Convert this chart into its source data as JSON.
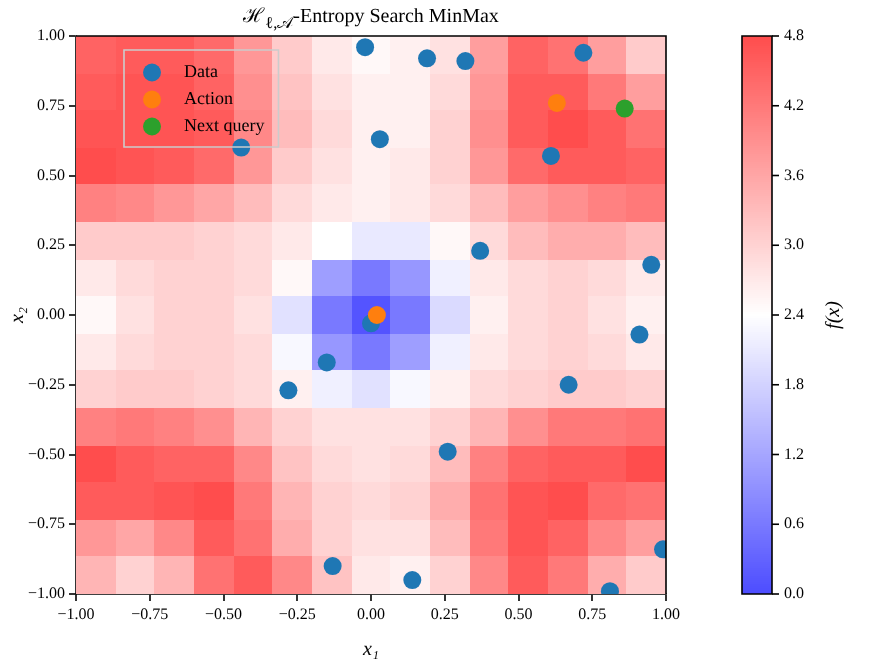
{
  "chart_data": {
    "type": "heatmap",
    "title": "ℋ$_{ℓ,𝒜}$-Entropy Search MinMax",
    "xlabel": "x₁",
    "ylabel": "x₂",
    "clabel": "f(x)",
    "xlim": [
      -1,
      1
    ],
    "xticks": [
      {
        "value": -1,
        "label": "−1.00"
      },
      {
        "value": -0.75,
        "label": "−0.75"
      },
      {
        "value": -0.5,
        "label": "−0.50"
      },
      {
        "value": -0.25,
        "label": "−0.25"
      },
      {
        "value": 0,
        "label": "0.00"
      },
      0.25,
      {
        "value": 0.5,
        "label": "0.50"
      },
      0.75,
      {
        "value": 1,
        "label": "1.00"
      }
    ],
    "ylim": [
      -1,
      1
    ],
    "yticks": [
      {
        "value": -1,
        "label": "−1.00"
      },
      {
        "value": -0.75,
        "label": "−0.75"
      },
      {
        "value": -0.5,
        "label": "−0.50"
      },
      {
        "value": -0.25,
        "label": "−0.25"
      },
      {
        "value": 0,
        "label": "0.00"
      },
      0.25,
      {
        "value": 0.5,
        "label": "0.50"
      },
      0.75,
      {
        "value": 1,
        "label": "1.00"
      }
    ],
    "clim": [
      0,
      4.8
    ],
    "cticks": [
      {
        "value": 0,
        "label": "0.0"
      },
      0.6,
      1.2,
      1.8,
      2.4,
      {
        "value": 3,
        "label": "3.0"
      },
      3.6,
      4.2,
      4.8
    ],
    "cells": [
      [
        4.5,
        4.6,
        4.6,
        4.4,
        3.8,
        3.1,
        2.7,
        2.5,
        2.6,
        2.8,
        3.7,
        4.5,
        4.3,
        3.7,
        3.1
      ],
      [
        4.6,
        4.7,
        4.7,
        4.5,
        3.9,
        3.2,
        2.8,
        2.6,
        2.6,
        2.9,
        3.8,
        4.6,
        4.6,
        4.2,
        3.7
      ],
      [
        4.7,
        4.7,
        4.7,
        4.6,
        4.0,
        3.3,
        2.9,
        2.6,
        2.6,
        3.0,
        3.9,
        4.6,
        4.8,
        4.6,
        4.3
      ],
      [
        4.8,
        4.7,
        4.6,
        4.4,
        3.8,
        3.1,
        2.8,
        2.6,
        2.7,
        3.0,
        3.8,
        4.4,
        4.6,
        4.6,
        4.5
      ],
      [
        4.1,
        4.0,
        3.8,
        3.6,
        3.3,
        2.9,
        2.7,
        2.6,
        2.7,
        2.9,
        3.3,
        3.7,
        3.9,
        4.1,
        4.2
      ],
      [
        3.1,
        3.1,
        3.1,
        3.0,
        2.9,
        2.7,
        2.4,
        2.1,
        2.1,
        2.5,
        2.9,
        3.3,
        3.5,
        3.5,
        3.3
      ],
      [
        2.7,
        2.9,
        3.0,
        3.0,
        2.9,
        2.5,
        1.1,
        0.6,
        1.0,
        2.2,
        2.7,
        2.9,
        3.0,
        2.9,
        2.7
      ],
      [
        2.5,
        2.8,
        3.0,
        3.0,
        2.8,
        2.0,
        0.6,
        0.1,
        0.6,
        1.9,
        2.6,
        2.9,
        3.0,
        2.8,
        2.6
      ],
      [
        2.7,
        2.9,
        3.0,
        3.0,
        2.9,
        2.3,
        1.0,
        0.6,
        1.1,
        2.2,
        2.7,
        2.9,
        3.0,
        2.9,
        2.7
      ],
      [
        3.0,
        3.1,
        3.1,
        3.0,
        2.9,
        2.6,
        2.2,
        2.0,
        2.3,
        2.6,
        2.9,
        3.0,
        3.1,
        3.1,
        3.0
      ],
      [
        4.1,
        4.2,
        4.1,
        3.9,
        3.4,
        3.0,
        2.8,
        2.8,
        2.8,
        3.0,
        3.4,
        3.9,
        4.2,
        4.2,
        4.3
      ],
      [
        4.8,
        4.6,
        4.5,
        4.5,
        4.0,
        3.2,
        2.9,
        2.8,
        2.9,
        3.3,
        4.1,
        4.5,
        4.6,
        4.6,
        4.8
      ],
      [
        4.6,
        4.6,
        4.7,
        4.8,
        4.2,
        3.4,
        3.0,
        2.9,
        3.0,
        3.5,
        4.3,
        4.7,
        4.8,
        4.4,
        4.3
      ],
      [
        3.8,
        3.6,
        4.0,
        4.6,
        4.3,
        3.5,
        3.0,
        2.8,
        2.8,
        3.3,
        4.2,
        4.7,
        4.5,
        4.0,
        3.7
      ],
      [
        3.4,
        3.0,
        3.4,
        4.3,
        4.6,
        4.0,
        3.2,
        2.7,
        2.6,
        3.0,
        4.0,
        4.6,
        4.2,
        3.5,
        3.1
      ]
    ],
    "legend": "top left",
    "marker": "circle",
    "series": [
      {
        "name": "Data",
        "type": "scatter",
        "color": "#1f77b4",
        "x": [
          -0.02,
          0.19,
          0.32,
          0.72,
          0.61,
          0.03,
          0.37,
          0.95,
          -0.44,
          0.0,
          -0.15,
          -0.28,
          -0.13,
          0.91,
          0.67,
          0.26,
          0.14,
          0.81,
          0.99
        ],
        "values": [
          0.96,
          0.92,
          0.91,
          0.94,
          0.57,
          0.63,
          0.23,
          0.18,
          0.6,
          -0.03,
          -0.17,
          -0.27,
          -0.9,
          -0.07,
          -0.25,
          -0.49,
          -0.95,
          -0.99,
          -0.84
        ]
      },
      {
        "name": "Action",
        "type": "scatter",
        "color": "#ff7f0e",
        "x": [
          0.63,
          0.02
        ],
        "values": [
          0.76,
          0.0
        ]
      },
      {
        "name": "Next query",
        "type": "scatter",
        "color": "#2ca02c",
        "x": [
          0.86
        ],
        "values": [
          0.74
        ]
      }
    ]
  }
}
